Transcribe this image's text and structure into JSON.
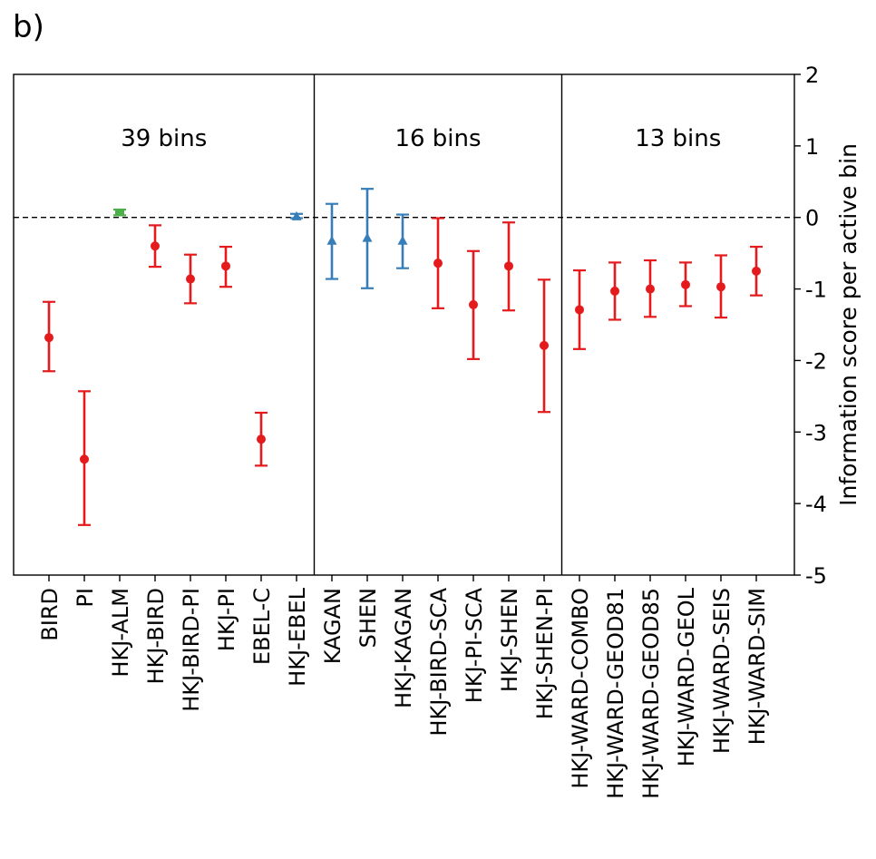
{
  "panel_label": "b)",
  "chart_data": {
    "type": "scatter",
    "ylabel": "Information score per active bin",
    "ylim": [
      -5,
      2
    ],
    "yticks": [
      "2",
      "1",
      "0",
      "-1",
      "-2",
      "-3",
      "-4",
      "-5"
    ],
    "ytick_values": [
      2,
      1,
      0,
      -1,
      -2,
      -3,
      -4,
      -5
    ],
    "reference_line": 0,
    "groups": [
      {
        "label": "39 bins",
        "count": 8
      },
      {
        "label": "16 bins",
        "count": 7
      },
      {
        "label": "13 bins",
        "count": 6
      }
    ],
    "colors": {
      "red": "#e41a1c",
      "green": "#4daf4a",
      "blue": "#377eb8"
    },
    "points": [
      {
        "label": "BIRD",
        "y": -1.68,
        "low": -2.15,
        "high": -1.18,
        "color": "red",
        "marker": "circle"
      },
      {
        "label": "PI",
        "y": -3.38,
        "low": -4.3,
        "high": -2.43,
        "color": "red",
        "marker": "circle"
      },
      {
        "label": "HKJ-ALM",
        "y": 0.07,
        "low": 0.03,
        "high": 0.11,
        "color": "green",
        "marker": "square"
      },
      {
        "label": "HKJ-BIRD",
        "y": -0.4,
        "low": -0.69,
        "high": -0.11,
        "color": "red",
        "marker": "circle"
      },
      {
        "label": "HKJ-BIRD-PI",
        "y": -0.86,
        "low": -1.2,
        "high": -0.52,
        "color": "red",
        "marker": "circle"
      },
      {
        "label": "HKJ-PI",
        "y": -0.68,
        "low": -0.97,
        "high": -0.41,
        "color": "red",
        "marker": "circle"
      },
      {
        "label": "EBEL-C",
        "y": -3.1,
        "low": -3.47,
        "high": -2.73,
        "color": "red",
        "marker": "circle"
      },
      {
        "label": "HKJ-EBEL",
        "y": 0.01,
        "low": -0.01,
        "high": 0.05,
        "color": "blue",
        "marker": "triangle"
      },
      {
        "label": "KAGAN",
        "y": -0.33,
        "low": -0.86,
        "high": 0.19,
        "color": "blue",
        "marker": "triangle"
      },
      {
        "label": "SHEN",
        "y": -0.29,
        "low": -0.99,
        "high": 0.4,
        "color": "blue",
        "marker": "triangle"
      },
      {
        "label": "HKJ-KAGAN",
        "y": -0.33,
        "low": -0.71,
        "high": 0.04,
        "color": "blue",
        "marker": "triangle"
      },
      {
        "label": "HKJ-BIRD-SCA",
        "y": -0.64,
        "low": -1.27,
        "high": -0.01,
        "color": "red",
        "marker": "circle"
      },
      {
        "label": "HKJ-PI-SCA",
        "y": -1.22,
        "low": -1.98,
        "high": -0.47,
        "color": "red",
        "marker": "circle"
      },
      {
        "label": "HKJ-SHEN",
        "y": -0.68,
        "low": -1.3,
        "high": -0.07,
        "color": "red",
        "marker": "circle"
      },
      {
        "label": "HKJ-SHEN-PI",
        "y": -1.79,
        "low": -2.72,
        "high": -0.87,
        "color": "red",
        "marker": "circle"
      },
      {
        "label": "HKJ-WARD-COMBO",
        "y": -1.29,
        "low": -1.84,
        "high": -0.74,
        "color": "red",
        "marker": "circle"
      },
      {
        "label": "HKJ-WARD-GEOD81",
        "y": -1.03,
        "low": -1.43,
        "high": -0.63,
        "color": "red",
        "marker": "circle"
      },
      {
        "label": "HKJ-WARD-GEOD85",
        "y": -1.0,
        "low": -1.39,
        "high": -0.6,
        "color": "red",
        "marker": "circle"
      },
      {
        "label": "HKJ-WARD-GEOL",
        "y": -0.94,
        "low": -1.24,
        "high": -0.63,
        "color": "red",
        "marker": "circle"
      },
      {
        "label": "HKJ-WARD-SEIS",
        "y": -0.97,
        "low": -1.4,
        "high": -0.53,
        "color": "red",
        "marker": "circle"
      },
      {
        "label": "HKJ-WARD-SIM",
        "y": -0.75,
        "low": -1.09,
        "high": -0.41,
        "color": "red",
        "marker": "circle"
      }
    ]
  }
}
